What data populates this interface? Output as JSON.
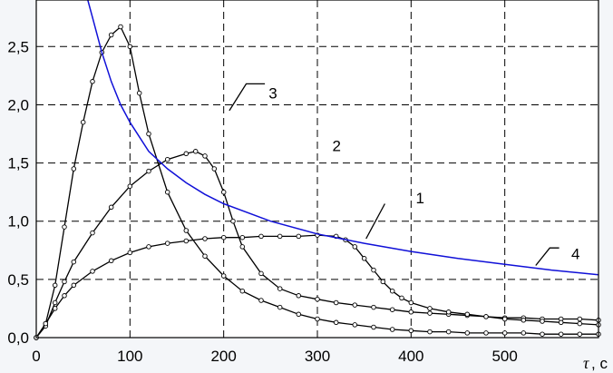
{
  "chart_data": {
    "type": "line",
    "xlim": [
      0,
      600
    ],
    "ylim": [
      0,
      2.9
    ],
    "xticks": [
      "0",
      "100",
      "200",
      "300",
      "400",
      "500"
    ],
    "yticks": [
      "0,0",
      "0,5",
      "1,0",
      "1,5",
      "2,0",
      "2,5"
    ],
    "xlabel": "τ",
    "xunit": ", с",
    "grid": true,
    "colors": {
      "background": "#ffffff",
      "page": "#f4f6f9",
      "data_curves": "#000000",
      "blue_curve": "#1010d8",
      "grid": "#000000"
    },
    "series": [
      {
        "marker": "circle",
        "color": "#000000",
        "x": [
          0,
          10,
          20,
          30,
          40,
          50,
          60,
          70,
          80,
          90,
          100,
          110,
          120,
          140,
          160,
          180,
          200,
          220,
          240,
          260,
          280,
          300,
          320,
          340,
          360,
          380,
          400,
          420,
          440,
          460,
          480,
          500,
          520,
          540,
          560,
          580,
          600
        ],
        "y": [
          0,
          0.12,
          0.45,
          0.95,
          1.45,
          1.85,
          2.2,
          2.45,
          2.6,
          2.67,
          2.5,
          2.1,
          1.75,
          1.25,
          0.92,
          0.7,
          0.53,
          0.4,
          0.32,
          0.26,
          0.2,
          0.16,
          0.13,
          0.11,
          0.09,
          0.07,
          0.06,
          0.05,
          0.05,
          0.04,
          0.04,
          0.04,
          0.04,
          0.03,
          0.03,
          0.03,
          0.03
        ]
      },
      {
        "marker": "circle",
        "color": "#000000",
        "x": [
          0,
          10,
          20,
          30,
          40,
          60,
          80,
          100,
          120,
          140,
          160,
          170,
          180,
          190,
          200,
          210,
          220,
          240,
          260,
          280,
          300,
          320,
          340,
          360,
          380,
          400,
          420,
          440,
          460,
          480,
          500,
          520,
          540,
          560,
          580,
          600
        ],
        "y": [
          0,
          0.1,
          0.3,
          0.48,
          0.65,
          0.9,
          1.12,
          1.3,
          1.43,
          1.53,
          1.58,
          1.6,
          1.56,
          1.45,
          1.25,
          1.0,
          0.78,
          0.55,
          0.42,
          0.36,
          0.33,
          0.3,
          0.28,
          0.26,
          0.24,
          0.22,
          0.21,
          0.2,
          0.19,
          0.18,
          0.17,
          0.17,
          0.16,
          0.16,
          0.16,
          0.15
        ]
      },
      {
        "marker": "circle",
        "color": "#000000",
        "x": [
          0,
          10,
          20,
          30,
          40,
          60,
          80,
          100,
          120,
          140,
          160,
          180,
          200,
          220,
          240,
          260,
          280,
          300,
          320,
          330,
          340,
          350,
          360,
          370,
          380,
          390,
          400,
          420,
          440,
          460,
          480,
          500,
          520,
          540,
          560,
          580,
          600
        ],
        "y": [
          0,
          0.12,
          0.25,
          0.36,
          0.45,
          0.57,
          0.66,
          0.73,
          0.78,
          0.81,
          0.83,
          0.85,
          0.86,
          0.86,
          0.87,
          0.87,
          0.87,
          0.88,
          0.87,
          0.84,
          0.78,
          0.68,
          0.58,
          0.48,
          0.4,
          0.34,
          0.3,
          0.25,
          0.22,
          0.2,
          0.18,
          0.16,
          0.15,
          0.14,
          0.13,
          0.12,
          0.11
        ]
      },
      {
        "marker": "none",
        "color": "#1010d8",
        "x": [
          55,
          60,
          70,
          80,
          90,
          100,
          120,
          140,
          160,
          180,
          200,
          250,
          300,
          350,
          400,
          450,
          500,
          550,
          600
        ],
        "y": [
          2.9,
          2.75,
          2.45,
          2.2,
          2.0,
          1.85,
          1.6,
          1.45,
          1.33,
          1.23,
          1.15,
          1.0,
          0.89,
          0.81,
          0.74,
          0.68,
          0.63,
          0.58,
          0.54
        ]
      }
    ],
    "annotations": [
      {
        "label": "1",
        "text_at": [
          405,
          1.2
        ],
        "line": [
          [
            372,
            1.15
          ],
          [
            352,
            0.85
          ]
        ]
      },
      {
        "label": "2",
        "text_at": [
          316,
          1.65
        ],
        "line": []
      },
      {
        "label": "3",
        "text_at": [
          248,
          2.1
        ],
        "line": [
          [
            244,
            2.18
          ],
          [
            224,
            2.18
          ],
          [
            206,
            1.95
          ]
        ]
      },
      {
        "label": "4",
        "text_at": [
          571,
          0.72
        ],
        "line": [
          [
            558,
            0.77
          ],
          [
            548,
            0.77
          ],
          [
            533,
            0.62
          ]
        ]
      }
    ]
  }
}
